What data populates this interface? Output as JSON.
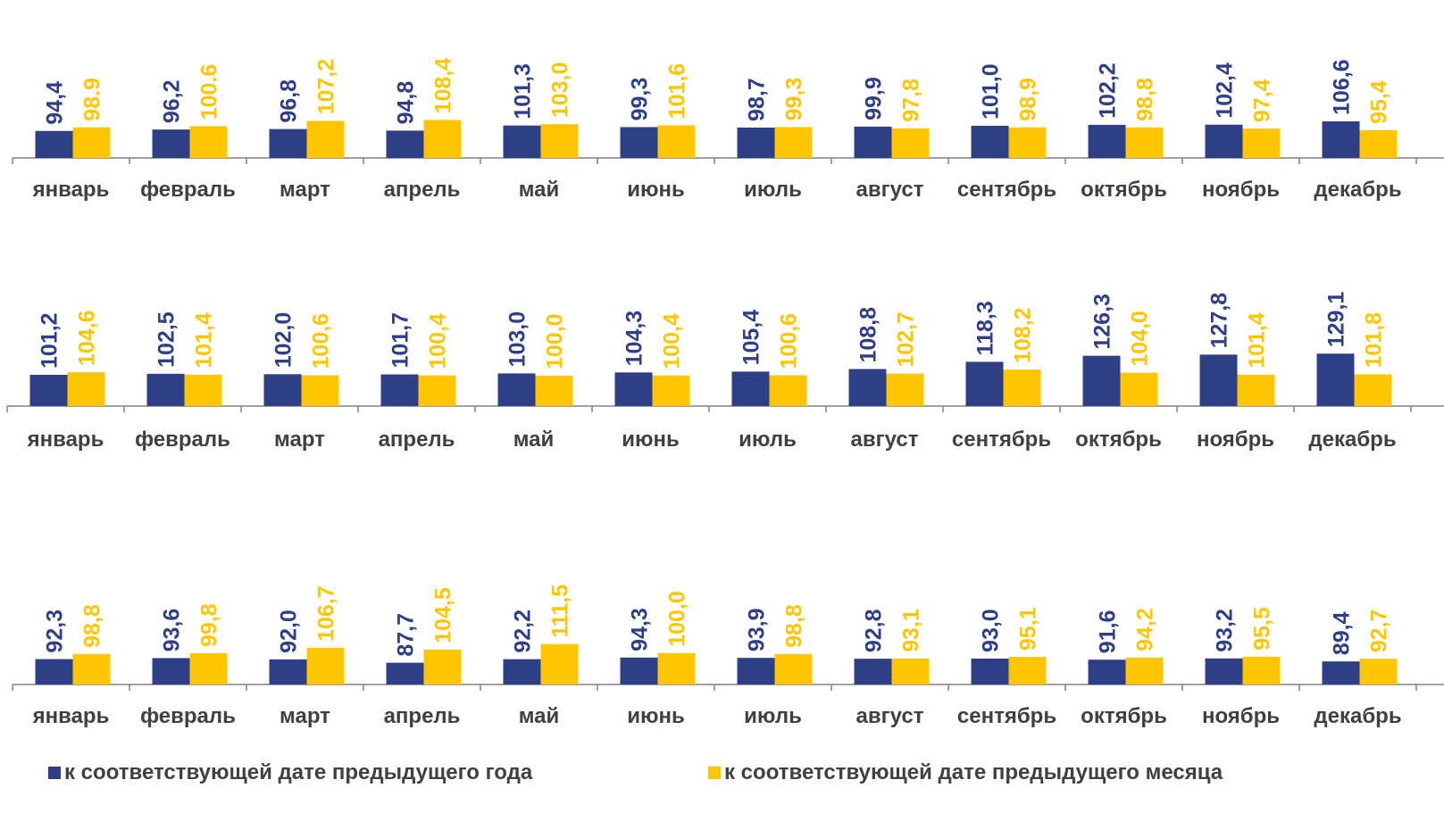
{
  "colors": {
    "series_a": "#2F3F87",
    "series_b": "#FFC600",
    "axis": "#808080",
    "category_text": "#404040"
  },
  "legend": {
    "series_a_label": "к соответствующей дате предыдущего года",
    "series_b_label": "к соответствующей дате предыдущего месяца"
  },
  "chart_data": [
    {
      "type": "bar",
      "categories": [
        "январь",
        "февраль",
        "март",
        "апрель",
        "май",
        "июнь",
        "июль",
        "август",
        "сентябрь",
        "октябрь",
        "ноябрь",
        "декабрь"
      ],
      "series": [
        {
          "name": "к соответствующей дате предыдущего года",
          "values": [
            94.4,
            96.2,
            96.8,
            94.8,
            101.3,
            99.3,
            98.7,
            99.9,
            101.0,
            102.2,
            102.4,
            106.6
          ],
          "labels": [
            "94,4",
            "96,2",
            "96,8",
            "94,8",
            "101,3",
            "99,3",
            "98,7",
            "99,9",
            "101,0",
            "102,2",
            "102,4",
            "106,6"
          ]
        },
        {
          "name": "к соответствующей дате предыдущего месяца",
          "values": [
            98.9,
            100.6,
            107.2,
            108.4,
            103.0,
            101.6,
            99.3,
            97.8,
            98.9,
            98.8,
            97.4,
            95.4
          ],
          "labels": [
            "98.9",
            "100.6",
            "107,2",
            "108,4",
            "103,0",
            "101,6",
            "99,3",
            "97,8",
            "98,9",
            "98,8",
            "97,4",
            "95,4"
          ]
        }
      ]
    },
    {
      "type": "bar",
      "categories": [
        "январь",
        "февраль",
        "март",
        "апрель",
        "май",
        "июнь",
        "июль",
        "август",
        "сентябрь",
        "октябрь",
        "ноябрь",
        "декабрь"
      ],
      "series": [
        {
          "name": "к соответствующей дате предыдущего года",
          "values": [
            101.2,
            102.5,
            102.0,
            101.7,
            103.0,
            104.3,
            105.4,
            108.8,
            118.3,
            126.3,
            127.8,
            129.1
          ],
          "labels": [
            "101,2",
            "102,5",
            "102,0",
            "101,7",
            "103,0",
            "104,3",
            "105,4",
            "108,8",
            "118,3",
            "126,3",
            "127,8",
            "129,1"
          ]
        },
        {
          "name": "к соответствующей дате предыдущего месяца",
          "values": [
            104.6,
            101.4,
            100.6,
            100.4,
            100.0,
            100.4,
            100.6,
            102.7,
            108.2,
            104.0,
            101.4,
            101.8
          ],
          "labels": [
            "104,6",
            "101,4",
            "100,6",
            "100,4",
            "100,0",
            "100,4",
            "100,6",
            "102,7",
            "108,2",
            "104,0",
            "101,4",
            "101,8"
          ]
        }
      ]
    },
    {
      "type": "bar",
      "categories": [
        "январь",
        "февраль",
        "март",
        "апрель",
        "май",
        "июнь",
        "июль",
        "август",
        "сентябрь",
        "октябрь",
        "ноябрь",
        "декабрь"
      ],
      "series": [
        {
          "name": "к соответствующей дате предыдущего года",
          "values": [
            92.3,
            93.6,
            92.0,
            87.7,
            92.2,
            94.3,
            93.9,
            92.8,
            93.0,
            91.6,
            93.2,
            89.4
          ],
          "labels": [
            "92,3",
            "93,6",
            "92,0",
            "87,7",
            "92,2",
            "94,3",
            "93,9",
            "92,8",
            "93,0",
            "91,6",
            "93,2",
            "89,4"
          ]
        },
        {
          "name": "к соответствующей дате предыдущего месяца",
          "values": [
            98.8,
            99.8,
            106.7,
            104.5,
            111.5,
            100.0,
            98.8,
            93.1,
            95.1,
            94.2,
            95.5,
            92.7
          ],
          "labels": [
            "98,8",
            "99,8",
            "106,7",
            "104,5",
            "111,5",
            "100,0",
            "98,8",
            "93,1",
            "95,1",
            "94,2",
            "95,5",
            "92,7"
          ]
        }
      ]
    }
  ]
}
